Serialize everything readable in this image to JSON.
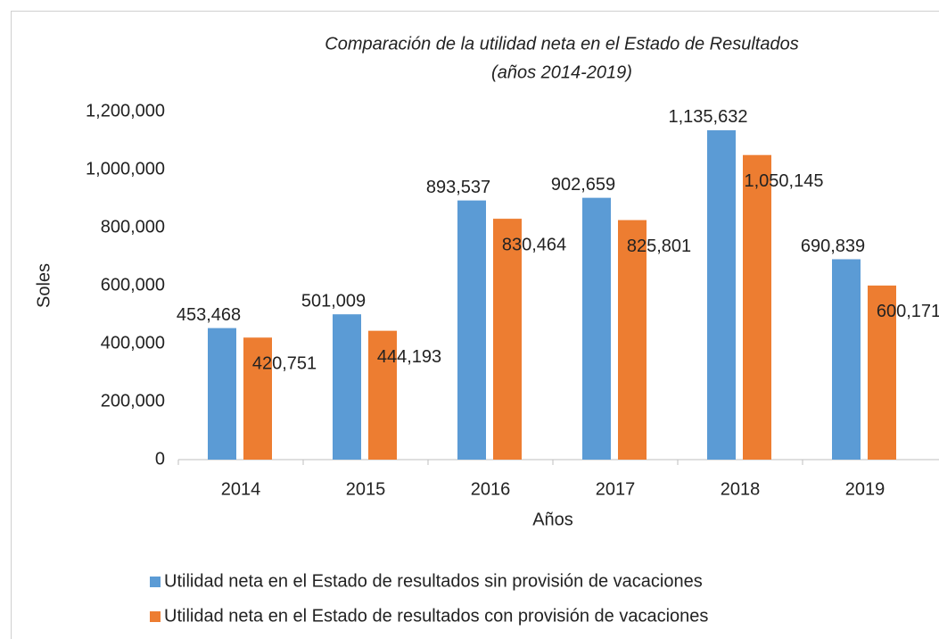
{
  "chart_data": {
    "type": "bar",
    "title": "Comparación de la utilidad neta en el Estado de Resultados",
    "subtitle": "(años 2014-2019)",
    "x_label": "Años",
    "y_label": "Soles",
    "categories": [
      "2014",
      "2015",
      "2016",
      "2017",
      "2018",
      "2019"
    ],
    "series": [
      {
        "name": "Utilidad neta en el Estado de resultados sin provisión de vacaciones",
        "color": "#5b9bd5",
        "values": [
          453468,
          501009,
          893537,
          902659,
          1135632,
          690839
        ],
        "value_labels": [
          "453,468",
          "501,009",
          "893,537",
          "902,659",
          "1,135,632",
          "690,839"
        ]
      },
      {
        "name": "Utilidad neta en el Estado de resultados con provisión de vacaciones",
        "color": "#ed7d31",
        "values": [
          420751,
          444193,
          830464,
          825801,
          1050145,
          600171
        ],
        "value_labels": [
          "420,751",
          "444,193",
          "830,464",
          "825,801",
          "1,050,145",
          "600,171"
        ]
      }
    ],
    "ylim": [
      0,
      1200000
    ],
    "yticks": [
      0,
      {
        "value": 200000,
        "label": "200,000"
      },
      {
        "value": 400000,
        "label": "400,000"
      },
      {
        "value": 600000,
        "label": "600,000"
      },
      {
        "value": 800000,
        "label": "800,000"
      },
      {
        "value": 1000000,
        "label": "1,000,000"
      },
      {
        "value": 1200000,
        "label": "1,200,000"
      }
    ],
    "grid": false,
    "legend": "bottom"
  }
}
